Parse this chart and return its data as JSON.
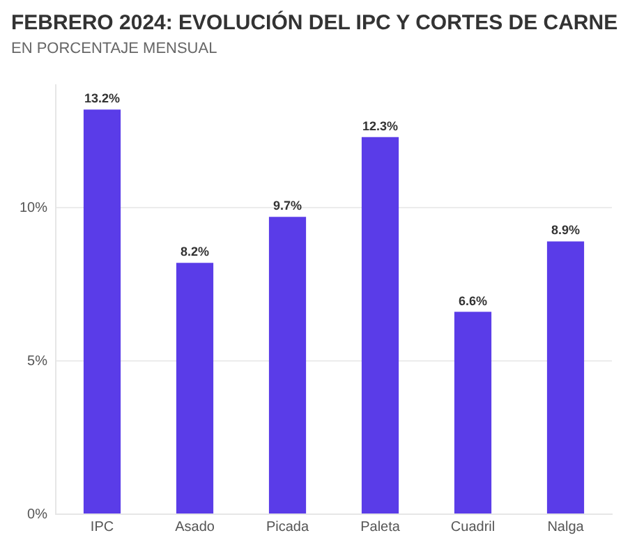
{
  "chart_data": {
    "type": "bar",
    "title": "FEBRERO 2024: EVOLUCIÓN DEL IPC Y CORTES DE CARNE",
    "subtitle": "EN PORCENTAJE MENSUAL",
    "categories": [
      "IPC",
      "Asado",
      "Picada",
      "Paleta",
      "Cuadril",
      "Nalga"
    ],
    "values": [
      13.2,
      8.2,
      9.7,
      12.3,
      6.6,
      8.9
    ],
    "value_labels": [
      "13.2%",
      "8.2%",
      "9.7%",
      "12.3%",
      "6.6%",
      "8.9%"
    ],
    "color": "#5a3ce8",
    "ylim": [
      0,
      14
    ],
    "yticks": [
      {
        "value": 0,
        "label": "0%"
      },
      {
        "value": 5,
        "label": "5%"
      },
      {
        "value": 10,
        "label": "10%"
      }
    ],
    "grid": "y"
  }
}
